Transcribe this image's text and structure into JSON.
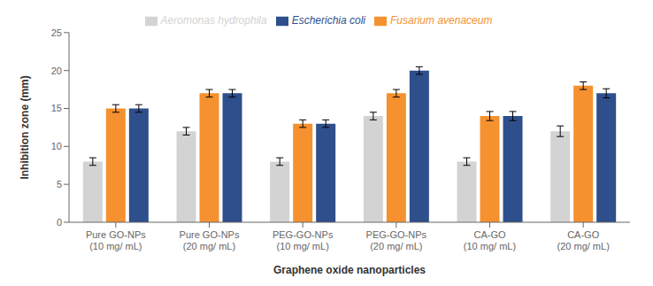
{
  "chart_data": {
    "type": "bar",
    "categories": [
      "Pure GO-NPs\n(10 mg/ mL)",
      "Pure GO-NPs\n(20 mg/ mL)",
      "PEG-GO-NPs\n(10 mg/ mL)",
      "PEG-GO-NPs\n(20 mg/ mL)",
      "CA-GO\n(10 mg/ mL)",
      "CA-GO\n(20 mg/ mL)"
    ],
    "series": [
      {
        "name": "Aeromonas hydrophila",
        "color": "#d3d3d3",
        "values": [
          8,
          12,
          8,
          14,
          8,
          12
        ],
        "errors": [
          0.5,
          0.5,
          0.5,
          0.5,
          0.5,
          0.7
        ]
      },
      {
        "name": "Fusarium avenaceum",
        "color": "#f5922f",
        "values": [
          15,
          17,
          13,
          17,
          14,
          18
        ],
        "errors": [
          0.5,
          0.5,
          0.5,
          0.5,
          0.6,
          0.5
        ]
      },
      {
        "name": "Escherichia coli",
        "color": "#2e4f8c",
        "values": [
          15,
          17,
          13,
          20,
          14,
          17
        ],
        "errors": [
          0.5,
          0.5,
          0.5,
          0.5,
          0.6,
          0.6
        ]
      }
    ],
    "xlabel": "Graphene oxide nanoparticles",
    "ylabel": "Inhibition zone (mm)",
    "ylim": [
      0,
      25
    ],
    "yticks": [
      0,
      5,
      10,
      15,
      20,
      25
    ],
    "grid": false,
    "legend": "top"
  }
}
